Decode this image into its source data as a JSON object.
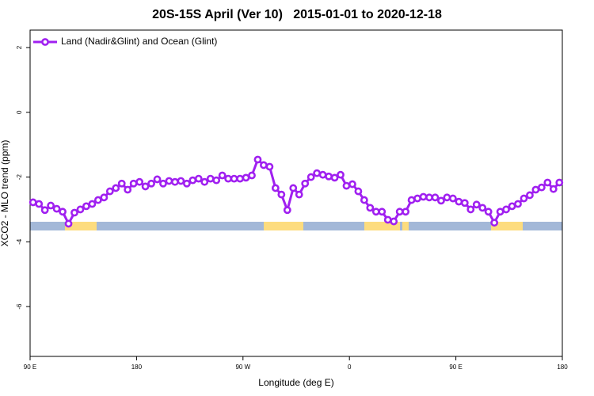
{
  "chart_data": {
    "type": "line",
    "title": "20S-15S April (Ver 10)   2015-01-01 to 2020-12-18",
    "x_label": "Longitude (deg E)",
    "y_label": "XCO2 - MLO trend (ppm)",
    "xlim": [
      90,
      540
    ],
    "xticks": [
      {
        "value": 90,
        "label": "90 E"
      },
      180,
      {
        "value": 270,
        "label": "90 W"
      },
      {
        "value": 360,
        "label": "0"
      },
      {
        "value": 450,
        "label": "90 E"
      },
      {
        "value": 540,
        "label": "180"
      }
    ],
    "ylim": [
      -7.54,
      2.54
    ],
    "yticks": [
      2,
      0,
      -2,
      -4,
      -6
    ],
    "legend": "top-left",
    "x": [
      92.5,
      97.5,
      102.5,
      107.5,
      112.5,
      117.5,
      122.5,
      127.5,
      132.5,
      137.5,
      142.5,
      147.5,
      152.5,
      157.5,
      162.5,
      167.5,
      172.5,
      177.5,
      182.5,
      187.5,
      192.5,
      197.5,
      202.5,
      207.5,
      212.5,
      217.5,
      222.5,
      227.5,
      232.5,
      237.5,
      242.5,
      247.5,
      252.5,
      257.5,
      262.5,
      267.5,
      272.5,
      277.5,
      282.5,
      287.5,
      292.5,
      297.5,
      302.5,
      307.5,
      312.5,
      317.5,
      322.5,
      327.5,
      332.5,
      337.5,
      342.5,
      347.5,
      352.5,
      357.5,
      362.5,
      367.5,
      372.5,
      377.5,
      382.5,
      387.5,
      392.5,
      397.5,
      402.5,
      407.5,
      412.5,
      417.5,
      422.5,
      427.5,
      432.5,
      437.5,
      442.5,
      447.5,
      452.5,
      457.5,
      462.5,
      467.5,
      472.5,
      477.5,
      482.5,
      487.5,
      492.5,
      497.5,
      502.5,
      507.5,
      512.5,
      517.5,
      522.5,
      527.5,
      532.5,
      537.5
    ],
    "series": [
      {
        "name": "Land (Nadir&Glint) and Ocean (Glint)",
        "color": "#a020f0",
        "values": [
          -2.78,
          -2.83,
          -3.02,
          -2.88,
          -2.98,
          -3.07,
          -3.44,
          -3.1,
          -3.0,
          -2.9,
          -2.83,
          -2.71,
          -2.63,
          -2.44,
          -2.34,
          -2.2,
          -2.39,
          -2.2,
          -2.15,
          -2.29,
          -2.2,
          -2.07,
          -2.2,
          -2.12,
          -2.15,
          -2.12,
          -2.2,
          -2.1,
          -2.05,
          -2.15,
          -2.05,
          -2.1,
          -1.95,
          -2.05,
          -2.05,
          -2.05,
          -2.02,
          -1.95,
          -1.46,
          -1.63,
          -1.68,
          -2.34,
          -2.54,
          -3.02,
          -2.34,
          -2.54,
          -2.2,
          -2.0,
          -1.88,
          -1.93,
          -1.98,
          -2.02,
          -1.93,
          -2.27,
          -2.22,
          -2.44,
          -2.71,
          -2.95,
          -3.07,
          -3.07,
          -3.32,
          -3.37,
          -3.07,
          -3.07,
          -2.71,
          -2.66,
          -2.61,
          -2.63,
          -2.63,
          -2.73,
          -2.63,
          -2.66,
          -2.76,
          -2.8,
          -3.0,
          -2.85,
          -2.95,
          -3.07,
          -3.41,
          -3.07,
          -3.0,
          -2.9,
          -2.83,
          -2.66,
          -2.56,
          -2.39,
          -2.32,
          -2.17,
          -2.37,
          -2.17
        ]
      }
    ]
  }
}
